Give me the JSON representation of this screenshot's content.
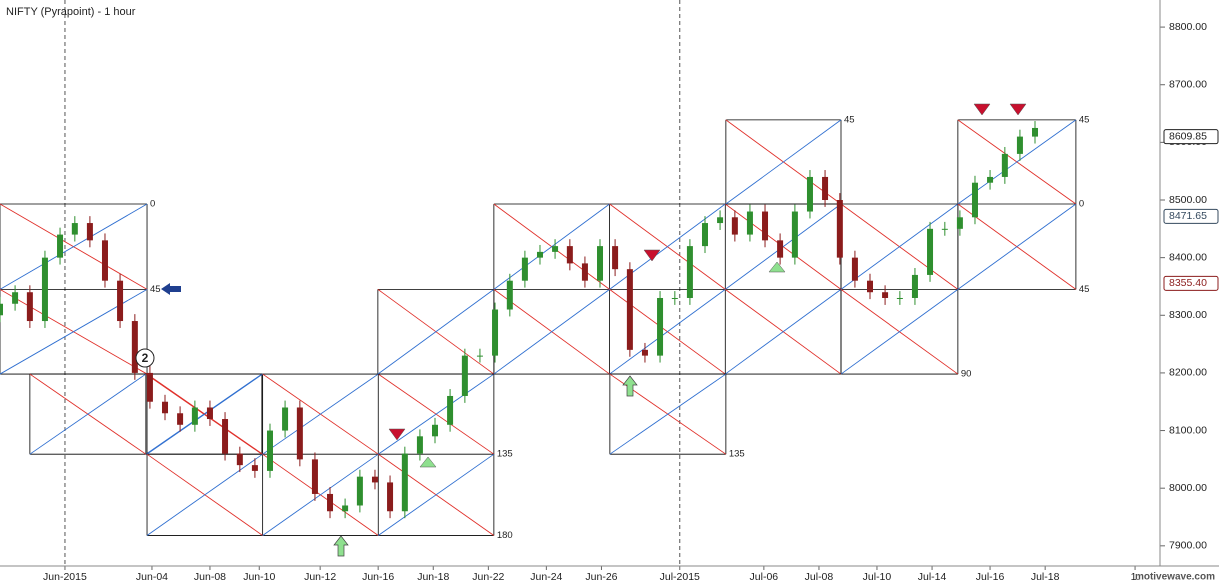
{
  "chart_data": {
    "type": "candlestick",
    "title": "NIFTY (Pyrapoint) - 1 hour",
    "watermark": "motivewave.com",
    "wave_label": "2",
    "up_color": "#2f8f2f",
    "down_color": "#8b1c1c",
    "xlim": [
      -2.24,
      37.76
    ],
    "ylim": [
      7865,
      8847
    ],
    "xticks": [
      {
        "value": 0,
        "label": "Jun-2015",
        "separator": true
      },
      {
        "value": 3,
        "label": "Jun-04"
      },
      {
        "value": 5,
        "label": "Jun-08"
      },
      {
        "value": 6.7,
        "label": "Jun-10"
      },
      {
        "value": 8.8,
        "label": "Jun-12"
      },
      {
        "value": 10.8,
        "label": "Jun-16"
      },
      {
        "value": 12.7,
        "label": "Jun-18"
      },
      {
        "value": 14.6,
        "label": "Jun-22"
      },
      {
        "value": 16.6,
        "label": "Jun-24"
      },
      {
        "value": 18.5,
        "label": "Jun-26"
      },
      {
        "value": 21.2,
        "label": "Jul-2015",
        "separator": true
      },
      {
        "value": 24.1,
        "label": "Jul-06"
      },
      {
        "value": 26.0,
        "label": "Jul-08"
      },
      {
        "value": 28.0,
        "label": "Jul-10"
      },
      {
        "value": 29.9,
        "label": "Jul-14"
      },
      {
        "value": 31.9,
        "label": "Jul-16"
      },
      {
        "value": 33.8,
        "label": "Jul-18"
      },
      {
        "value": 36.9,
        "label": "1."
      }
    ],
    "yticks": [
      {
        "value": 7900,
        "label": "7900.00"
      },
      {
        "value": 8000,
        "label": "8000.00"
      },
      {
        "value": 8100,
        "label": "8100.00"
      },
      {
        "value": 8200,
        "label": "8200.00"
      },
      {
        "value": 8300,
        "label": "8300.00"
      },
      {
        "value": 8400,
        "label": "8400.00"
      },
      {
        "value": 8500,
        "label": "8500.00"
      },
      {
        "value": 8600,
        "label": "8600.00"
      },
      {
        "value": 8700,
        "label": "8700.00"
      },
      {
        "value": 8800,
        "label": "8800.00"
      }
    ],
    "price_tags": [
      8609.85,
      8471.65,
      {
        "value": 8355.4,
        "label": "8355.40"
      }
    ],
    "price_tag_colors": [
      "#222222",
      "#34495e",
      "#8b1c1c"
    ],
    "x": [
      -2.24,
      -1.72,
      -1.21,
      -0.69,
      -0.17,
      0.34,
      0.86,
      1.38,
      1.9,
      2.41,
      2.93,
      3.45,
      3.97,
      4.48,
      5.0,
      5.52,
      6.03,
      6.55,
      7.07,
      7.59,
      8.1,
      8.62,
      9.14,
      9.66,
      10.17,
      10.69,
      11.21,
      11.72,
      12.24,
      12.76,
      13.28,
      13.79,
      14.31,
      14.83,
      15.34,
      15.86,
      16.38,
      16.9,
      17.41,
      17.93,
      18.45,
      18.97,
      19.48,
      20.0,
      20.52,
      21.03,
      21.55,
      22.07,
      22.59,
      23.1,
      23.62,
      24.14,
      24.66,
      25.17,
      25.69,
      26.21,
      26.72,
      27.24,
      27.76,
      28.28,
      28.79,
      29.31,
      29.83,
      30.34,
      30.86,
      31.38,
      31.9,
      32.41,
      32.93,
      33.45
    ],
    "open": [
      8300,
      8320,
      8340,
      8290,
      8400,
      8440,
      8460,
      8430,
      8360,
      8290,
      8200,
      8150,
      8130,
      8110,
      8140,
      8120,
      8060,
      8040,
      8030,
      8100,
      8140,
      8050,
      7990,
      7960,
      7970,
      8020,
      8010,
      7960,
      8060,
      8090,
      8110,
      8160,
      8230,
      8230,
      8310,
      8360,
      8400,
      8410,
      8420,
      8390,
      8360,
      8420,
      8380,
      8240,
      8230,
      8330,
      8330,
      8420,
      8460,
      8470,
      8440,
      8480,
      8430,
      8400,
      8480,
      8540,
      8500,
      8400,
      8360,
      8340,
      8330,
      8330,
      8370,
      8450,
      8450,
      8470,
      8530,
      8540,
      8580,
      8610
    ],
    "high": [
      8332,
      8352,
      8352,
      8412,
      8452,
      8472,
      8472,
      8442,
      8372,
      8302,
      8212,
      8162,
      8142,
      8152,
      8152,
      8132,
      8072,
      8052,
      8112,
      8152,
      8152,
      8062,
      8002,
      7982,
      8032,
      8032,
      8022,
      8072,
      8102,
      8122,
      8172,
      8242,
      8242,
      8322,
      8372,
      8412,
      8422,
      8432,
      8432,
      8402,
      8432,
      8432,
      8392,
      8252,
      8342,
      8342,
      8432,
      8472,
      8482,
      8482,
      8492,
      8492,
      8442,
      8492,
      8552,
      8552,
      8512,
      8412,
      8372,
      8352,
      8342,
      8382,
      8462,
      8462,
      8482,
      8542,
      8552,
      8592,
      8622,
      8637
    ],
    "low": [
      8288,
      8308,
      8278,
      8278,
      8388,
      8428,
      8418,
      8348,
      8278,
      8188,
      8138,
      8118,
      8098,
      8098,
      8108,
      8048,
      8028,
      8018,
      8018,
      8088,
      8038,
      7978,
      7948,
      7948,
      7958,
      7998,
      7948,
      7948,
      8048,
      8078,
      8098,
      8148,
      8218,
      8218,
      8298,
      8348,
      8388,
      8398,
      8378,
      8348,
      8348,
      8368,
      8228,
      8218,
      8218,
      8318,
      8318,
      8408,
      8448,
      8428,
      8428,
      8418,
      8388,
      8388,
      8468,
      8488,
      8388,
      8348,
      8328,
      8318,
      8318,
      8318,
      8358,
      8438,
      8438,
      8458,
      8518,
      8528,
      8568,
      8598
    ],
    "close": [
      8320,
      8340,
      8290,
      8400,
      8440,
      8460,
      8430,
      8360,
      8290,
      8200,
      8150,
      8130,
      8110,
      8140,
      8120,
      8060,
      8040,
      8030,
      8100,
      8140,
      8050,
      7990,
      7960,
      7970,
      8020,
      8010,
      7960,
      8060,
      8090,
      8110,
      8160,
      8230,
      8230,
      8310,
      8360,
      8400,
      8410,
      8420,
      8390,
      8360,
      8420,
      8380,
      8240,
      8230,
      8330,
      8330,
      8420,
      8460,
      8470,
      8440,
      8480,
      8430,
      8400,
      8480,
      8540,
      8500,
      8400,
      8360,
      8340,
      8330,
      8330,
      8370,
      8450,
      8450,
      8470,
      8530,
      8540,
      8580,
      8610,
      8625
    ],
    "pyrapoint": [
      {
        "x": [
          -2.24,
          2.83
        ],
        "levels": [
          {
            "price": 8493,
            "label": "0"
          },
          {
            "price": 8345,
            "label": "45"
          },
          {
            "price": 8198
          }
        ]
      },
      {
        "x": [
          -1.21,
          6.79
        ],
        "levels": [
          {
            "price": 8198
          },
          {
            "price": 8059
          }
        ]
      },
      {
        "x": [
          2.83,
          14.79
        ],
        "levels": [
          {
            "price": 8198
          },
          {
            "price": 8059,
            "label": "135"
          },
          {
            "price": 7918,
            "label": "180"
          }
        ]
      },
      {
        "x": [
          10.79,
          14.79
        ],
        "levels": [
          {
            "price": 8345
          },
          {
            "price": 8198
          }
        ]
      },
      {
        "x": [
          14.79,
          26.76
        ],
        "levels": [
          {
            "price": 8493
          },
          {
            "price": 8345
          },
          {
            "price": 8198
          }
        ]
      },
      {
        "x": [
          18.79,
          22.79
        ],
        "levels": [
          {
            "price": 8198
          },
          {
            "price": 8059,
            "label": "135"
          }
        ]
      },
      {
        "x": [
          22.79,
          26.76
        ],
        "levels": [
          {
            "price": 8639,
            "label": "45"
          },
          {
            "price": 8493
          }
        ]
      },
      {
        "x": [
          26.76,
          30.79
        ],
        "levels": [
          {
            "price": 8493
          },
          {
            "price": 8345
          },
          {
            "price": 8198,
            "label": "90"
          }
        ]
      },
      {
        "x": [
          30.79,
          34.86
        ],
        "levels": [
          {
            "price": 8639,
            "label": "45"
          },
          {
            "price": 8493,
            "label": "0"
          },
          {
            "price": 8345,
            "label": "45"
          }
        ]
      }
    ]
  }
}
